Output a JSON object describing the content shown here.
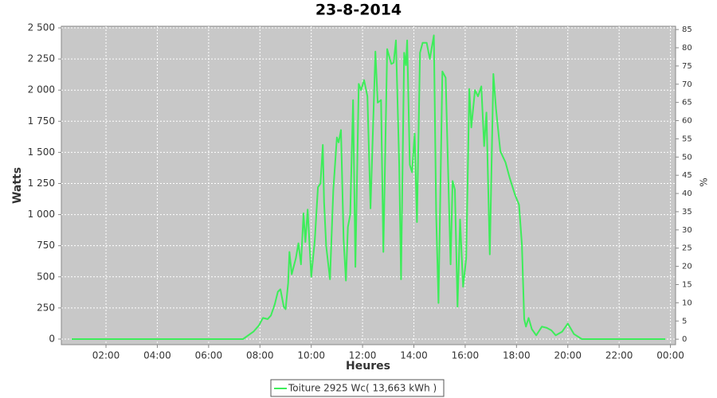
{
  "chart_data": {
    "type": "line",
    "title": "23-8-2014",
    "x_label": "Heures",
    "y_label": "Watts",
    "y2_label": "%",
    "x": [
      0.66,
      7.34,
      7.75,
      7.96,
      8.12,
      8.3,
      8.43,
      8.58,
      8.7,
      8.8,
      8.93,
      9.0,
      9.1,
      9.15,
      9.24,
      9.4,
      9.5,
      9.6,
      9.7,
      9.77,
      9.86,
      10.0,
      10.14,
      10.26,
      10.36,
      10.45,
      10.5,
      10.58,
      10.73,
      10.86,
      11.0,
      11.07,
      11.16,
      11.26,
      11.35,
      11.43,
      11.52,
      11.63,
      11.72,
      11.85,
      11.94,
      12.06,
      12.19,
      12.31,
      12.5,
      12.59,
      12.72,
      12.81,
      12.96,
      13.12,
      13.21,
      13.3,
      13.43,
      13.5,
      13.62,
      13.69,
      13.74,
      13.84,
      13.93,
      14.03,
      14.12,
      14.24,
      14.34,
      14.5,
      14.62,
      14.78,
      14.87,
      14.96,
      15.11,
      15.24,
      15.43,
      15.51,
      15.6,
      15.7,
      15.8,
      15.92,
      16.04,
      16.16,
      16.24,
      16.38,
      16.5,
      16.63,
      16.74,
      16.83,
      16.96,
      17.1,
      17.2,
      17.37,
      17.57,
      17.74,
      17.94,
      18.1,
      18.21,
      18.3,
      18.37,
      18.47,
      18.6,
      18.77,
      18.99,
      19.18,
      19.36,
      19.53,
      19.78,
      20.0,
      20.24,
      20.55,
      23.8
    ],
    "series": [
      {
        "name": "Toiture 2925 Wc( 13,663 kWh )",
        "color": "#3ded5a",
        "values": [
          0,
          0,
          60,
          110,
          170,
          160,
          190,
          280,
          380,
          400,
          260,
          240,
          450,
          700,
          520,
          650,
          770,
          600,
          1010,
          780,
          1040,
          500,
          800,
          1220,
          1250,
          1560,
          1100,
          750,
          480,
          1200,
          1620,
          1580,
          1680,
          800,
          470,
          900,
          1000,
          1920,
          580,
          2050,
          2000,
          2080,
          1950,
          1050,
          2310,
          1900,
          1920,
          700,
          2330,
          2210,
          2220,
          2400,
          1400,
          480,
          2300,
          2200,
          2400,
          1400,
          1340,
          1650,
          940,
          2300,
          2380,
          2380,
          2250,
          2440,
          1000,
          290,
          2150,
          2100,
          600,
          1270,
          1200,
          260,
          960,
          420,
          650,
          2010,
          1700,
          2000,
          1950,
          2030,
          1550,
          1820,
          680,
          2130,
          1850,
          1510,
          1420,
          1290,
          1160,
          1080,
          760,
          160,
          100,
          170,
          80,
          30,
          100,
          90,
          70,
          30,
          60,
          125,
          40,
          0,
          0
        ]
      }
    ],
    "xlim": [
      0.26,
      24.2
    ],
    "xticks": [
      {
        "value": 2,
        "label": "02:00"
      },
      {
        "value": 4,
        "label": "04:00"
      },
      {
        "value": 6,
        "label": "06:00"
      },
      {
        "value": 8,
        "label": "08:00"
      },
      {
        "value": 10,
        "label": "10:00"
      },
      {
        "value": 12,
        "label": "12:00"
      },
      {
        "value": 14,
        "label": "14:00"
      },
      {
        "value": 16,
        "label": "16:00"
      },
      {
        "value": 18,
        "label": "18:00"
      },
      {
        "value": 20,
        "label": "20:00"
      },
      {
        "value": 22,
        "label": "22:00"
      },
      {
        "value": 24,
        "label": "00:00"
      }
    ],
    "ylim": [
      -45,
      2513
    ],
    "yticks": [
      0,
      250,
      500,
      750,
      {
        "value": 1000,
        "label": "1 000"
      },
      {
        "value": 1250,
        "label": "1 250"
      },
      {
        "value": 1500,
        "label": "1 500"
      },
      {
        "value": 1750,
        "label": "1 750"
      },
      {
        "value": 2000,
        "label": "2 000"
      },
      {
        "value": 2250,
        "label": "2 250"
      },
      {
        "value": 2500,
        "label": "2 500"
      }
    ],
    "y2lim": [
      -1.5,
      85.9
    ],
    "y2ticks": [
      0,
      5,
      10,
      15,
      20,
      25,
      30,
      35,
      40,
      45,
      50,
      55,
      60,
      65,
      70,
      75,
      80,
      85
    ],
    "grid": true,
    "legend": "bottom"
  }
}
